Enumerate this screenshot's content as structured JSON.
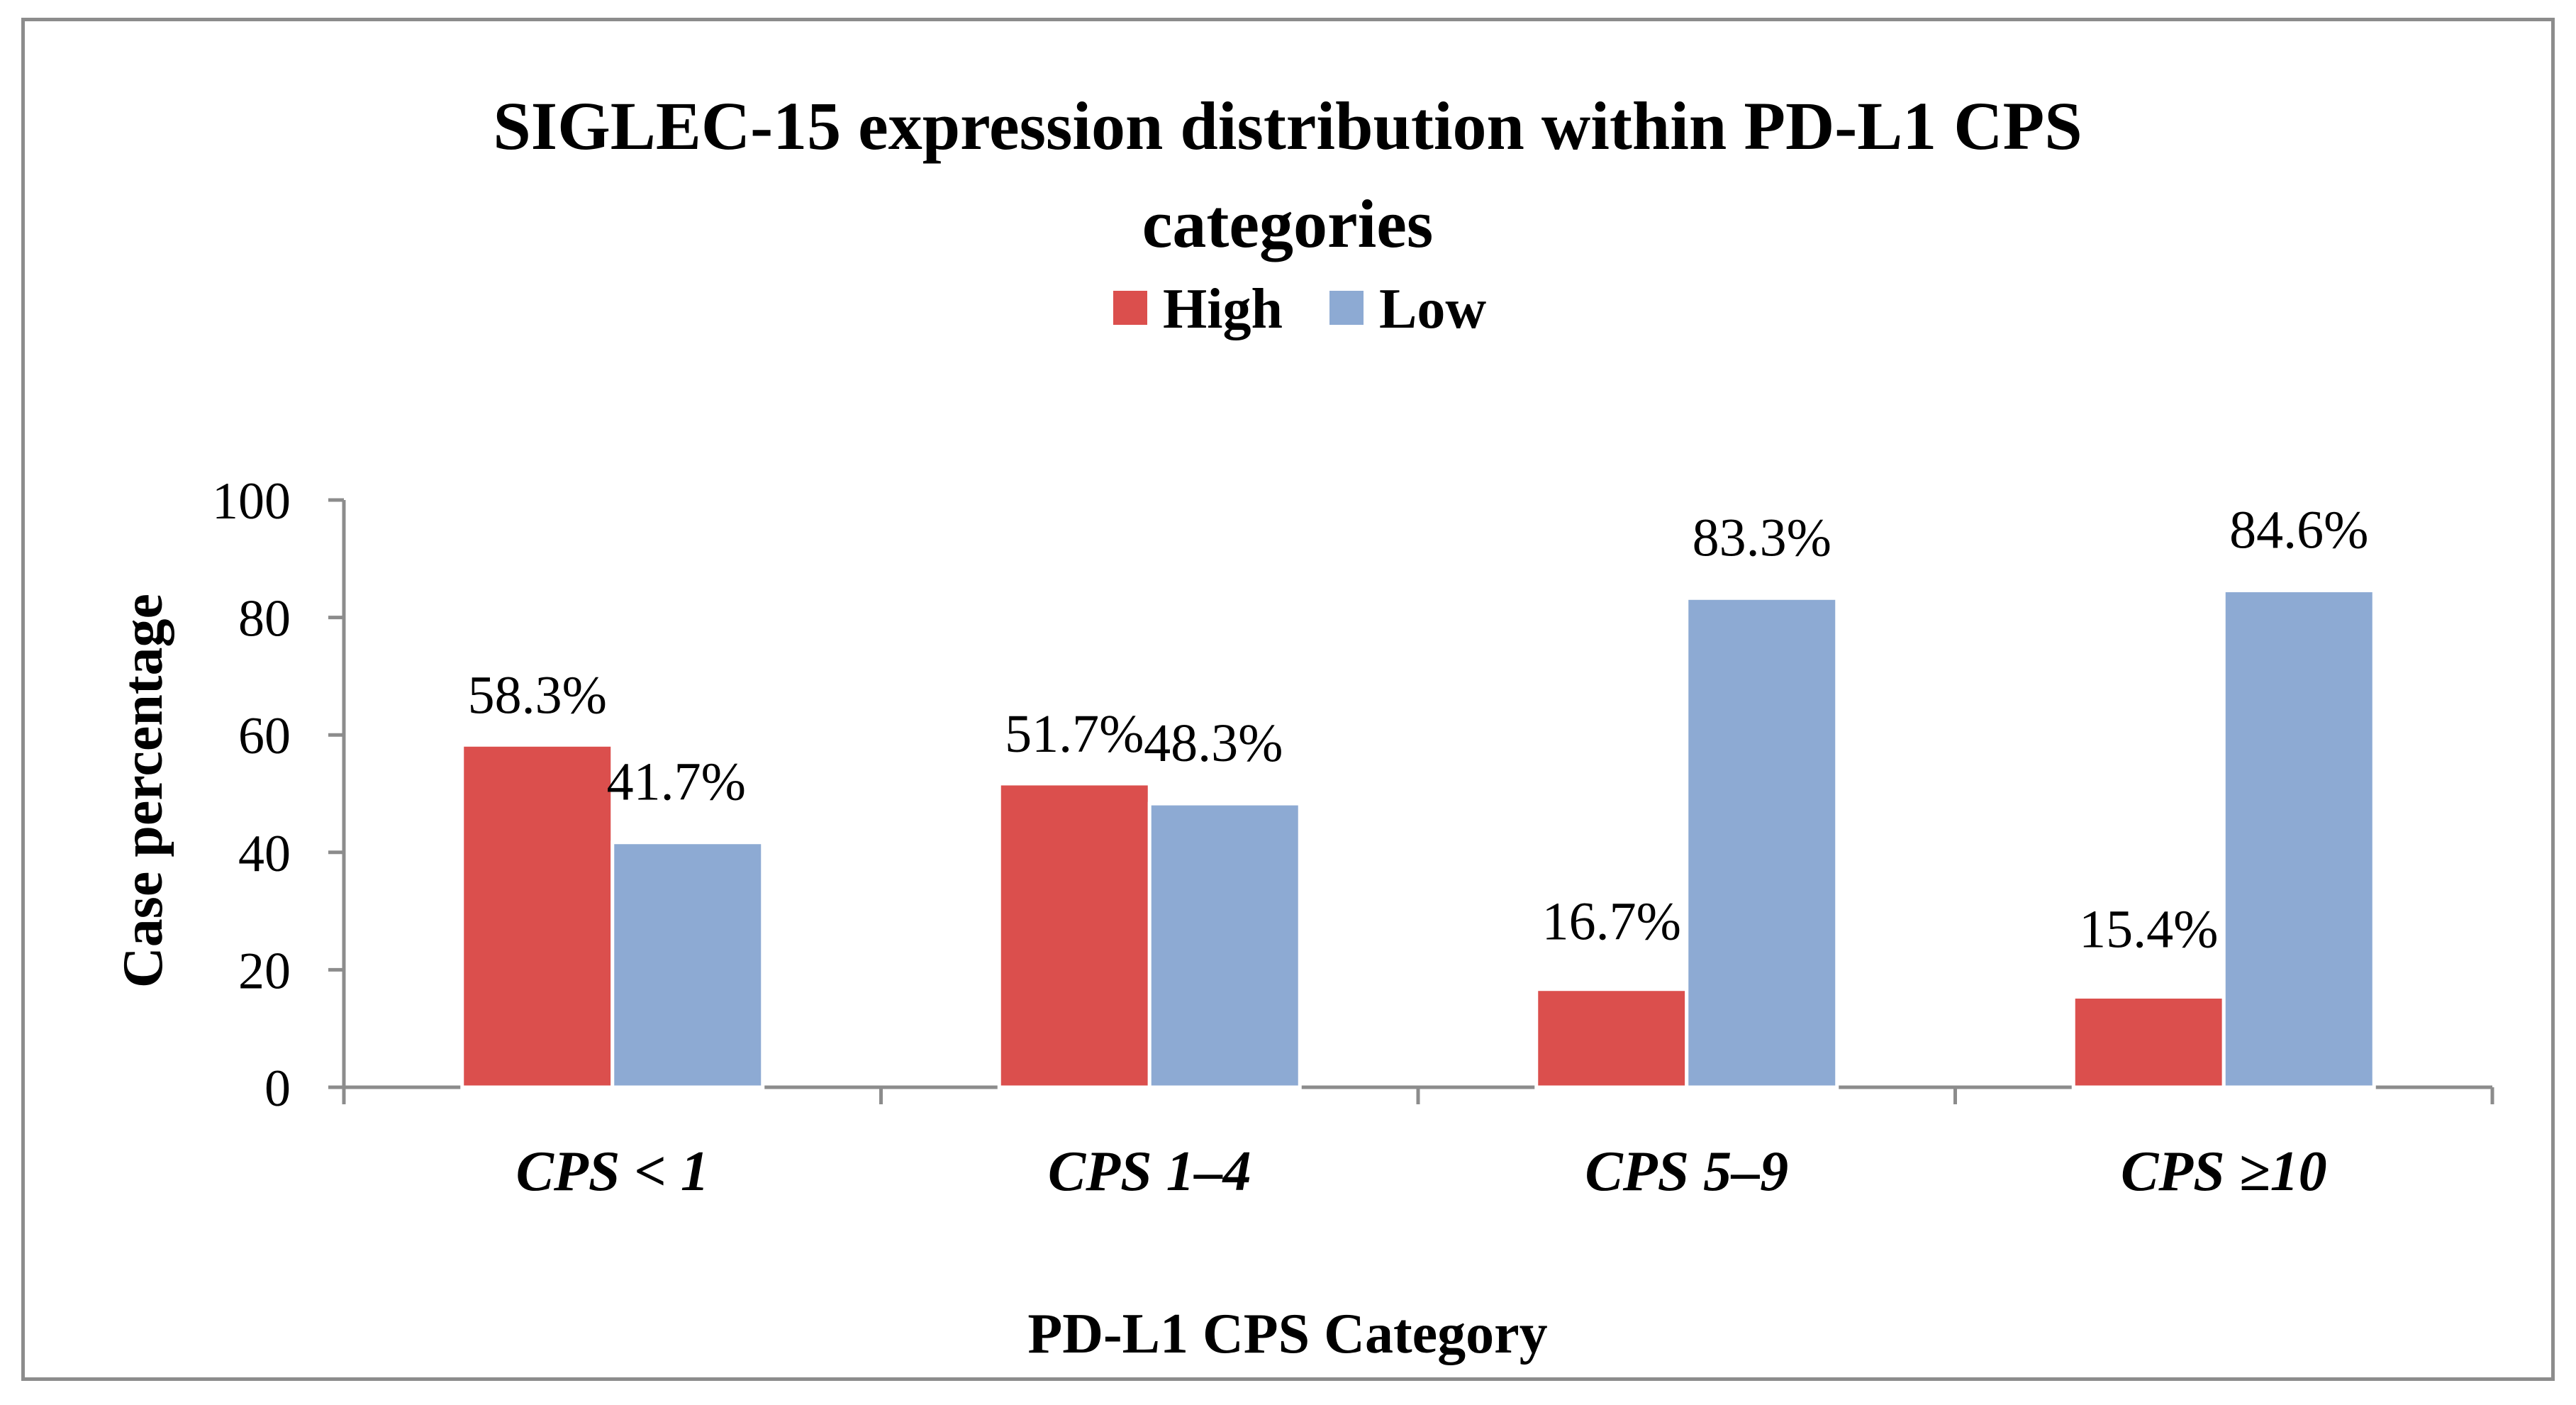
{
  "chart_data": {
    "type": "bar",
    "title_lines": [
      "SIGLEC-15 expression distribution within PD-L1 CPS",
      "categories"
    ],
    "xlabel": "PD-L1 CPS Category",
    "ylabel": "Case percentage",
    "ylim": [
      0,
      100
    ],
    "yticks": [
      0,
      20,
      40,
      60,
      80,
      100
    ],
    "ytick_labels": [
      "0",
      "20",
      "40",
      "60",
      "80",
      "100"
    ],
    "categories": [
      "CPS < 1",
      "CPS 1–4",
      "CPS 5–9",
      "CPS ≥10"
    ],
    "legend_position": "top-center",
    "grid": false,
    "series": [
      {
        "name": "High",
        "color": "#DB4F4D",
        "values": [
          58.3,
          51.7,
          16.7,
          15.4
        ],
        "labels": [
          "58.3%",
          "51.7%",
          "16.7%",
          "15.4%"
        ]
      },
      {
        "name": "Low",
        "color": "#8DAAD3",
        "values": [
          41.7,
          48.3,
          83.3,
          84.6
        ],
        "labels": [
          "41.7%",
          "48.3%",
          "83.3%",
          "84.6%"
        ]
      }
    ]
  }
}
